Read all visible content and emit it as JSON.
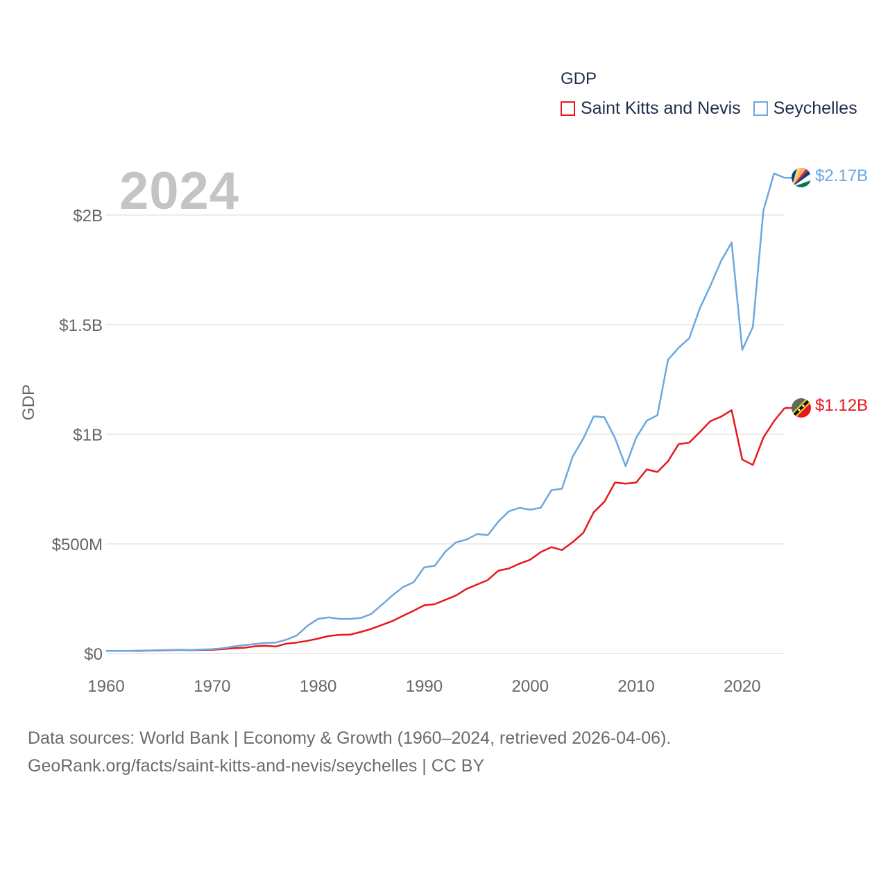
{
  "legend": {
    "title": "GDP",
    "items": [
      {
        "label": "Saint Kitts and Nevis",
        "color": "#e8171e"
      },
      {
        "label": "Seychelles",
        "color": "#6aa8e0"
      }
    ]
  },
  "year_display": "2024",
  "source": {
    "line1": "Data sources: World Bank | Economy & Growth (1960–2024, retrieved 2026-04-06).",
    "line2": "GeoRank.org/facts/saint-kitts-and-nevis/seychelles | CC BY"
  },
  "end_labels": {
    "seychelles": "$2.17B",
    "saint_kitts": "$1.12B"
  },
  "chart_data": {
    "type": "line",
    "title": "GDP",
    "xlabel": "",
    "ylabel": "GDP",
    "xlim": [
      1960,
      2024
    ],
    "ylim": [
      0,
      2200000000
    ],
    "x_ticks": [
      1960,
      1970,
      1980,
      1990,
      2000,
      2010,
      2020
    ],
    "y_ticks": [
      0,
      500000000,
      1000000000,
      1500000000,
      2000000000
    ],
    "y_tick_labels": [
      "$0",
      "$500M",
      "$1B",
      "$1.5B",
      "$2B"
    ],
    "grid": true,
    "legend_position": "top-right",
    "x": [
      1960,
      1961,
      1962,
      1963,
      1964,
      1965,
      1966,
      1967,
      1968,
      1969,
      1970,
      1971,
      1972,
      1973,
      1974,
      1975,
      1976,
      1977,
      1978,
      1979,
      1980,
      1981,
      1982,
      1983,
      1984,
      1985,
      1986,
      1987,
      1988,
      1989,
      1990,
      1991,
      1992,
      1993,
      1994,
      1995,
      1996,
      1997,
      1998,
      1999,
      2000,
      2001,
      2002,
      2003,
      2004,
      2005,
      2006,
      2007,
      2008,
      2009,
      2010,
      2011,
      2012,
      2013,
      2014,
      2015,
      2016,
      2017,
      2018,
      2019,
      2020,
      2021,
      2022,
      2023,
      2024
    ],
    "series": [
      {
        "name": "Saint Kitts and Nevis",
        "color": "#e8171e",
        "values": [
          12000000,
          12000000,
          12000000,
          12000000,
          13000000,
          14000000,
          15000000,
          16000000,
          15000000,
          16000000,
          17000000,
          20000000,
          24000000,
          26000000,
          33000000,
          35000000,
          32000000,
          45000000,
          50000000,
          58000000,
          68000000,
          80000000,
          85000000,
          86000000,
          98000000,
          112000000,
          130000000,
          148000000,
          172000000,
          195000000,
          220000000,
          225000000,
          245000000,
          265000000,
          295000000,
          315000000,
          335000000,
          378000000,
          388000000,
          410000000,
          428000000,
          463000000,
          485000000,
          472000000,
          508000000,
          550000000,
          645000000,
          692000000,
          780000000,
          775000000,
          780000000,
          840000000,
          828000000,
          877000000,
          955000000,
          962000000,
          1010000000,
          1060000000,
          1080000000,
          1110000000,
          885000000,
          860000000,
          985000000,
          1060000000,
          1120000000
        ]
      },
      {
        "name": "Seychelles",
        "color": "#6aa8e0",
        "values": [
          12000000,
          12000000,
          12000000,
          13000000,
          14000000,
          15000000,
          16000000,
          17000000,
          16000000,
          18000000,
          20000000,
          24000000,
          32000000,
          38000000,
          43000000,
          48000000,
          50000000,
          63000000,
          83000000,
          127000000,
          158000000,
          165000000,
          158000000,
          158000000,
          162000000,
          180000000,
          222000000,
          265000000,
          303000000,
          325000000,
          393000000,
          400000000,
          465000000,
          507000000,
          520000000,
          545000000,
          540000000,
          602000000,
          649000000,
          665000000,
          656000000,
          665000000,
          745000000,
          752000000,
          897000000,
          980000000,
          1082000000,
          1078000000,
          983000000,
          855000000,
          985000000,
          1062000000,
          1087000000,
          1340000000,
          1395000000,
          1438000000,
          1575000000,
          1678000000,
          1790000000,
          1875000000,
          1385000000,
          1490000000,
          2020000000,
          2190000000,
          2170000000
        ]
      }
    ]
  }
}
